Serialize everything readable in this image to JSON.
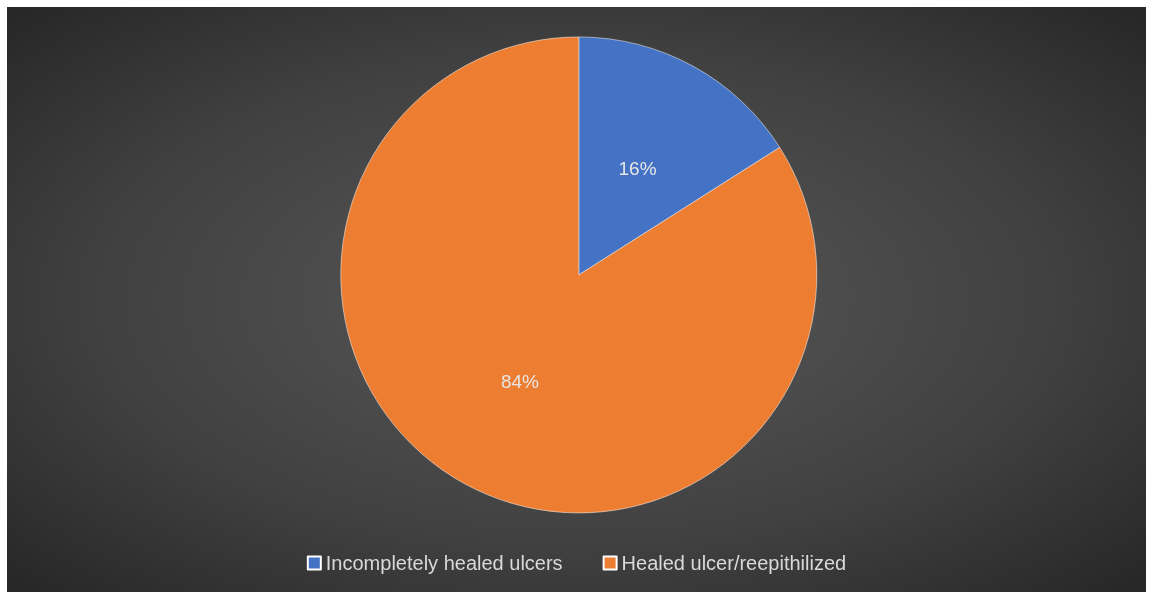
{
  "chart_data": {
    "type": "pie",
    "categories": [
      "Incompletely healed ulcers",
      "Healed ulcer/reepithilized"
    ],
    "values": [
      16,
      84
    ],
    "colors": [
      "#4472c4",
      "#ed7d31"
    ],
    "value_labels": [
      "16%",
      "84%"
    ],
    "legend": "bottom"
  }
}
